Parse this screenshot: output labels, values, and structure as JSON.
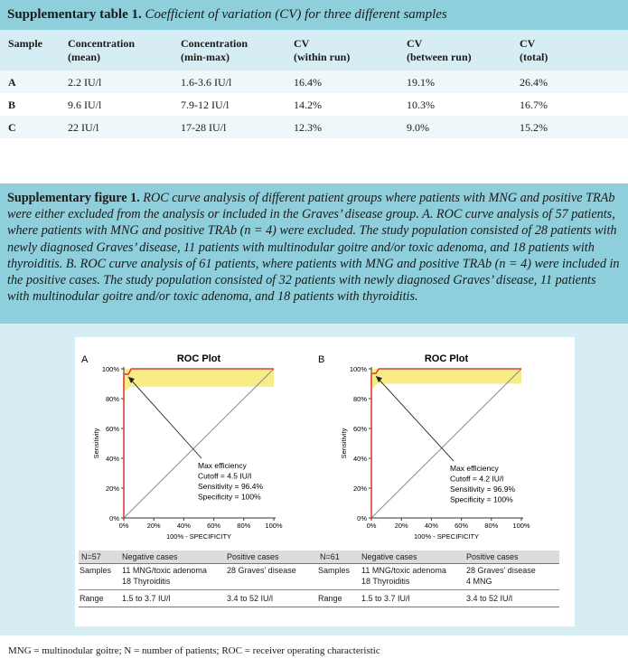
{
  "table": {
    "label": "Supplementary table 1.",
    "caption": "Coefficient of variation (CV) for three different samples",
    "headers": [
      "Sample",
      "Concentration\n(mean)",
      "Concentration\n(min-max)",
      "CV\n(within run)",
      "CV\n(between run)",
      "CV\n(total)"
    ],
    "rows": [
      [
        "A",
        "2.2 IU/l",
        "1.6-3.6 IU/l",
        "16.4%",
        "19.1%",
        "26.4%"
      ],
      [
        "B",
        "9.6 IU/l",
        "7.9-12 IU/l",
        "14.2%",
        "10.3%",
        "16.7%"
      ],
      [
        "C",
        "22 IU/l",
        "17-28 IU/l",
        "12.3%",
        "9.0%",
        "15.2%"
      ]
    ]
  },
  "figure": {
    "label": "Supplementary figure 1.",
    "caption": "ROC curve analysis of different patient groups where patients with MNG and positive TRAb were either excluded from the analysis or included in the Graves’ disease group. A. ROC curve analysis of 57 patients, where patients with MNG and positive TRAb (n = 4) were excluded. The study population consisted of 28 patients with newly diagnosed Graves’ disease, 11 patients with multinodular goitre and/or toxic adenoma, and 18 patients with thyroiditis. B. ROC curve analysis of 61 patients, where patients with MNG and positive TRAb (n = 4) were included in the positive cases. The study population consisted of 32 patients with newly diagnosed Graves’ disease, 11 patients with multinodular goitre and/or toxic adenoma, and 18 patients with thyroiditis."
  },
  "panels": [
    {
      "letter": "A",
      "title": "ROC Plot",
      "ylabel": "Sensitivity",
      "xlabel": "100% - SPECIFICITY",
      "ticks": [
        "0%",
        "20%",
        "40%",
        "60%",
        "80%",
        "100%"
      ],
      "annotation": [
        "Max efficiency",
        "Cutoff = 4.5 IU/l",
        "Sensitivity = 96.4%",
        "Specificity = 100%"
      ],
      "n_label": "N=57",
      "neg_header": "Negative cases",
      "pos_header": "Positive cases",
      "samples_label": "Samples",
      "neg_samples": [
        "11 MNG/toxic adenoma",
        "18 Thyroiditis"
      ],
      "pos_samples": [
        "28 Graves’ disease"
      ],
      "range_label": "Range",
      "neg_range": "1.5 to 3.7 IU/l",
      "pos_range": "3.4 to 52 IU/l"
    },
    {
      "letter": "B",
      "title": "ROC Plot",
      "ylabel": "Sensitivity",
      "xlabel": "100% - SPECIFICITY",
      "ticks": [
        "0%",
        "20%",
        "40%",
        "60%",
        "80%",
        "100%"
      ],
      "annotation": [
        "Max efficiency",
        "Cutoff = 4.2 IU/l",
        "Sensitivity = 96.9%",
        "Specificity = 100%"
      ],
      "n_label": "N=61",
      "neg_header": "Negative cases",
      "pos_header": "Positive cases",
      "samples_label": "Samples",
      "neg_samples": [
        "11 MNG/toxic adenoma",
        "18 Thyroiditis"
      ],
      "pos_samples": [
        "28 Graves’ disease",
        "4 MNG"
      ],
      "range_label": "Range",
      "neg_range": "1.5 to 3.7 IU/l",
      "pos_range": "3.4 to 52 IU/l"
    }
  ],
  "footnote": "MNG = multinodular goitre; N = number of patients; ROC = receiver operating characteristic",
  "chart_data": [
    {
      "type": "line",
      "title": "ROC Plot",
      "xlabel": "100% - SPECIFICITY",
      "ylabel": "Sensitivity",
      "xlim": [
        0,
        100
      ],
      "ylim": [
        0,
        100
      ],
      "series": [
        {
          "values": [
            [
              0,
              0
            ],
            [
              0,
              96.4
            ],
            [
              3,
              96.4
            ],
            [
              5,
              100
            ],
            [
              100,
              100
            ]
          ]
        }
      ],
      "max_efficiency_point": [
        0,
        96.4
      ],
      "confidence_band": {
        "lower": [
          [
            0,
            84
          ],
          [
            4,
            88
          ],
          [
            100,
            88
          ]
        ],
        "upper": [
          [
            0,
            100
          ],
          [
            100,
            100
          ]
        ]
      },
      "colors": {
        "curve": "#d9413a",
        "band": "#f7ec85"
      }
    },
    {
      "type": "line",
      "title": "ROC Plot",
      "xlabel": "100% - SPECIFICITY",
      "ylabel": "Sensitivity",
      "xlim": [
        0,
        100
      ],
      "ylim": [
        0,
        100
      ],
      "series": [
        {
          "values": [
            [
              0,
              0
            ],
            [
              0,
              96.9
            ],
            [
              3,
              96.9
            ],
            [
              5,
              100
            ],
            [
              100,
              100
            ]
          ]
        }
      ],
      "max_efficiency_point": [
        0,
        96.9
      ],
      "confidence_band": {
        "lower": [
          [
            0,
            86
          ],
          [
            4,
            90
          ],
          [
            100,
            90
          ]
        ],
        "upper": [
          [
            0,
            100
          ],
          [
            100,
            100
          ]
        ]
      },
      "colors": {
        "curve": "#d9413a",
        "band": "#f7ec85"
      }
    }
  ]
}
